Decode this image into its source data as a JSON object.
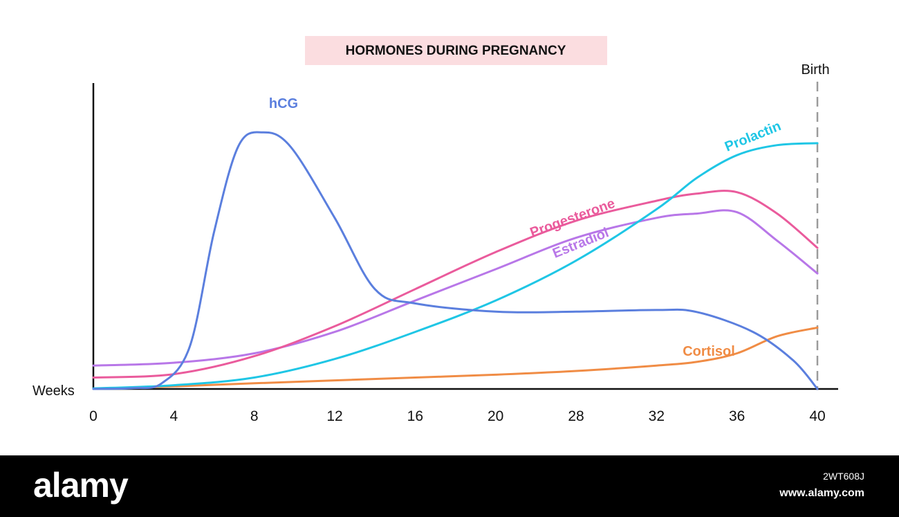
{
  "chart_data": {
    "type": "line",
    "title": "HORMONES DURING PREGNANCY",
    "xlabel": "Weeks",
    "ylabel": "",
    "x_ticks": [
      "0",
      "4",
      "8",
      "12",
      "16",
      "20",
      "28",
      "32",
      "36",
      "40"
    ],
    "xlim": [
      0,
      9
    ],
    "ylim": [
      0,
      1
    ],
    "grid": false,
    "legend": "none",
    "annotations": [
      {
        "label": "Birth",
        "at_tick": "40"
      }
    ],
    "series": [
      {
        "name": "hCG",
        "color": "#5b7fde",
        "points": [
          [
            0,
            0
          ],
          [
            0.5,
            0.003
          ],
          [
            0.85,
            0.02
          ],
          [
            1.2,
            0.15
          ],
          [
            1.5,
            0.55
          ],
          [
            1.8,
            0.85
          ],
          [
            2.1,
            0.9
          ],
          [
            2.45,
            0.85
          ],
          [
            3.0,
            0.6
          ],
          [
            3.5,
            0.35
          ],
          [
            4.0,
            0.3
          ],
          [
            5.0,
            0.271
          ],
          [
            6.0,
            0.271
          ],
          [
            7.0,
            0.277
          ],
          [
            7.5,
            0.27
          ],
          [
            8.2,
            0.2
          ],
          [
            8.7,
            0.1
          ],
          [
            9.0,
            0
          ]
        ]
      },
      {
        "name": "Progesterone",
        "color": "#ea5b9c",
        "points": [
          [
            0,
            0.04
          ],
          [
            1,
            0.052
          ],
          [
            2,
            0.115
          ],
          [
            3,
            0.22
          ],
          [
            4,
            0.35
          ],
          [
            5,
            0.48
          ],
          [
            6,
            0.59
          ],
          [
            7,
            0.66
          ],
          [
            7.5,
            0.685
          ],
          [
            8.0,
            0.69
          ],
          [
            8.5,
            0.615
          ],
          [
            9.0,
            0.495
          ]
        ]
      },
      {
        "name": "Estradiol",
        "color": "#b877e8",
        "points": [
          [
            0,
            0.082
          ],
          [
            1,
            0.092
          ],
          [
            2,
            0.125
          ],
          [
            3,
            0.2
          ],
          [
            4,
            0.31
          ],
          [
            5,
            0.42
          ],
          [
            6,
            0.53
          ],
          [
            7,
            0.6
          ],
          [
            7.5,
            0.615
          ],
          [
            8.0,
            0.62
          ],
          [
            8.5,
            0.52
          ],
          [
            9.0,
            0.405
          ]
        ]
      },
      {
        "name": "Prolactin",
        "color": "#1fc6e5",
        "points": [
          [
            0,
            0.002
          ],
          [
            1,
            0.013
          ],
          [
            2,
            0.04
          ],
          [
            3,
            0.105
          ],
          [
            4,
            0.2
          ],
          [
            5,
            0.31
          ],
          [
            6,
            0.45
          ],
          [
            7,
            0.63
          ],
          [
            7.5,
            0.74
          ],
          [
            8.0,
            0.82
          ],
          [
            8.5,
            0.855
          ],
          [
            9.0,
            0.862
          ]
        ]
      },
      {
        "name": "Cortisol",
        "color": "#f08c45",
        "points": [
          [
            0,
            0.0
          ],
          [
            1,
            0.009
          ],
          [
            2,
            0.02
          ],
          [
            3,
            0.03
          ],
          [
            4,
            0.04
          ],
          [
            5,
            0.05
          ],
          [
            6,
            0.063
          ],
          [
            7,
            0.082
          ],
          [
            7.5,
            0.095
          ],
          [
            8.0,
            0.125
          ],
          [
            8.5,
            0.185
          ],
          [
            9.0,
            0.215
          ]
        ]
      }
    ]
  },
  "footer": {
    "brand": "alamy",
    "image_id": "2WT608J",
    "site": "www.alamy.com"
  }
}
